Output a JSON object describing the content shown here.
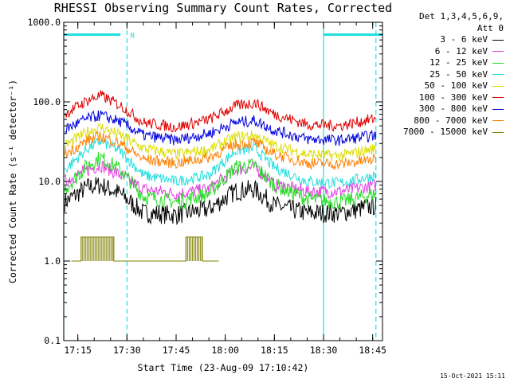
{
  "chart_data": {
    "type": "line",
    "title": "RHESSI Observing Summary Count Rates, Corrected",
    "xlabel": "Start Time (23-Aug-09 17:10:42)",
    "ylabel": "Corrected Count Rate (s⁻¹ detector⁻¹)",
    "ylog": true,
    "ylim": [
      0.1,
      1000
    ],
    "y_ticks": [
      "0.1",
      "1.0",
      "10.0",
      "100.0",
      "1000.0"
    ],
    "xlim": [
      "17:10:42",
      "18:48:00"
    ],
    "x_ticks": [
      "17:15",
      "17:30",
      "17:45",
      "18:00",
      "18:15",
      "18:30",
      "18:45"
    ],
    "legend_header": "Det 1,3,4,5,6,9,",
    "legend_att": "Att 0",
    "series": [
      {
        "name": "3 - 6 keV",
        "color": "#000000",
        "x": [
          "17:11",
          "17:18",
          "17:22",
          "17:28",
          "17:35",
          "17:45",
          "17:55",
          "18:03",
          "18:09",
          "18:15",
          "18:25",
          "18:35",
          "18:46"
        ],
        "y": [
          5.5,
          8.5,
          9,
          7,
          4,
          3.8,
          4.5,
          7.5,
          8,
          5,
          4,
          4,
          5
        ]
      },
      {
        "name": "6 - 12 keV",
        "color": "#e23de2",
        "x": [
          "17:11",
          "17:18",
          "17:22",
          "17:28",
          "17:35",
          "17:45",
          "17:55",
          "18:03",
          "18:09",
          "18:15",
          "18:25",
          "18:35",
          "18:46"
        ],
        "y": [
          10,
          14,
          16,
          12,
          8,
          7,
          8,
          14,
          15,
          9,
          7.5,
          7.5,
          9
        ]
      },
      {
        "name": "12 - 25 keV",
        "color": "#22dd22",
        "x": [
          "17:11",
          "17:18",
          "17:22",
          "17:28",
          "17:35",
          "17:45",
          "17:55",
          "18:03",
          "18:09",
          "18:15",
          "18:25",
          "18:35",
          "18:46"
        ],
        "y": [
          8,
          16,
          20,
          14,
          6.5,
          5.5,
          7,
          15,
          16,
          9,
          6,
          5.5,
          7
        ]
      },
      {
        "name": "25 - 50 keV",
        "color": "#22dddd",
        "x": [
          "17:11",
          "17:18",
          "17:22",
          "17:28",
          "17:35",
          "17:45",
          "17:55",
          "18:03",
          "18:09",
          "18:15",
          "18:25",
          "18:35",
          "18:46"
        ],
        "y": [
          14,
          26,
          32,
          24,
          12,
          10,
          12,
          24,
          26,
          15,
          10,
          9.5,
          12
        ]
      },
      {
        "name": "50 - 100 keV",
        "color": "#dddd00",
        "x": [
          "17:11",
          "17:18",
          "17:22",
          "17:28",
          "17:35",
          "17:45",
          "17:55",
          "18:03",
          "18:09",
          "18:15",
          "18:25",
          "18:35",
          "18:46"
        ],
        "y": [
          28,
          42,
          48,
          38,
          26,
          22,
          25,
          36,
          38,
          28,
          22,
          21,
          26
        ]
      },
      {
        "name": "100 - 300 keV",
        "color": "#e00000",
        "x": [
          "17:11",
          "17:18",
          "17:22",
          "17:28",
          "17:35",
          "17:45",
          "17:55",
          "18:03",
          "18:09",
          "18:15",
          "18:25",
          "18:35",
          "18:46"
        ],
        "y": [
          70,
          105,
          120,
          90,
          55,
          48,
          60,
          88,
          98,
          70,
          52,
          50,
          62
        ]
      },
      {
        "name": "300 - 800 keV",
        "color": "#0000dd",
        "x": [
          "17:11",
          "17:18",
          "17:22",
          "17:28",
          "17:35",
          "17:45",
          "17:55",
          "18:03",
          "18:09",
          "18:15",
          "18:25",
          "18:35",
          "18:46"
        ],
        "y": [
          45,
          62,
          68,
          56,
          38,
          33,
          40,
          55,
          58,
          44,
          34,
          33,
          38
        ]
      },
      {
        "name": "800 - 7000 keV",
        "color": "#ff8000",
        "x": [
          "17:11",
          "17:18",
          "17:22",
          "17:28",
          "17:35",
          "17:45",
          "17:55",
          "18:03",
          "18:09",
          "18:15",
          "18:25",
          "18:35",
          "18:46"
        ],
        "y": [
          22,
          33,
          37,
          30,
          19,
          17,
          20,
          29,
          31,
          22,
          17,
          16.5,
          19
        ]
      },
      {
        "name": "7000 - 15000 keV",
        "color": "#808000",
        "x": [
          "17:13",
          "17:16",
          "17:16",
          "17:26",
          "17:26",
          "17:30",
          "17:43",
          "17:48",
          "17:48",
          "17:53",
          "17:53",
          "17:58"
        ],
        "y": [
          1.0,
          1.0,
          2.0,
          2.0,
          1.0,
          1.0,
          1.0,
          1.0,
          2.0,
          2.0,
          1.0,
          1.0
        ]
      }
    ],
    "flag_bars": [
      {
        "label": "",
        "start": "17:10:42",
        "end": "17:28",
        "level": 700
      },
      {
        "label": "N",
        "start": "17:30",
        "end": "17:30",
        "level": 700
      },
      {
        "label": "",
        "start": "18:30",
        "end": "18:48",
        "level": 700
      }
    ],
    "vertical_lines": [
      {
        "time": "17:10:42",
        "style": "solid"
      },
      {
        "time": "17:30",
        "style": "dashed"
      },
      {
        "time": "18:30",
        "style": "solid"
      },
      {
        "time": "18:46",
        "style": "dashed"
      }
    ],
    "grid": false,
    "legend_position": "right"
  },
  "footer": {
    "timestamp": "15-Oct-2021 15:11"
  },
  "colors": {
    "flag": "#22dddd",
    "axis": "#000000"
  }
}
